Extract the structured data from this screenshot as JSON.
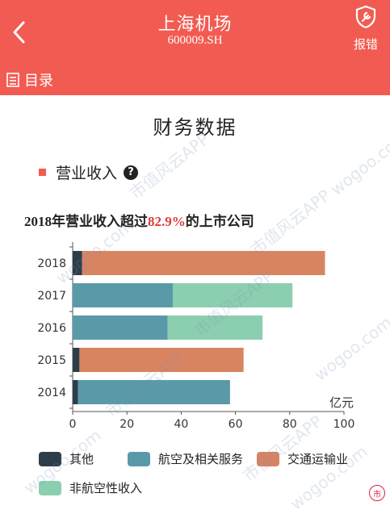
{
  "header": {
    "title": "上海机场",
    "code": "600009.SH",
    "report_label": "报错",
    "bg_color": "#f25b52"
  },
  "toc": {
    "label": "目录"
  },
  "card": {
    "title": "财务数据",
    "section_label": "营业收入",
    "help_symbol": "?",
    "headline_prefix": "2018年营业收入超过",
    "headline_pct": "82.9%",
    "headline_suffix": "的上市公司"
  },
  "chart_data": {
    "type": "bar",
    "orientation": "horizontal",
    "stacked": true,
    "categories": [
      "2018",
      "2017",
      "2016",
      "2015",
      "2014"
    ],
    "series": [
      {
        "name": "其他",
        "color": "#2d3e4a",
        "values": [
          3.5,
          0,
          0,
          2.5,
          2.0
        ]
      },
      {
        "name": "航空及相关服务",
        "color": "#5a9aa8",
        "values": [
          0,
          37,
          35,
          0,
          56
        ]
      },
      {
        "name": "交通运输业",
        "color": "#d98461",
        "values": [
          89.5,
          0,
          0,
          60.5,
          0
        ]
      },
      {
        "name": "非航空性收入",
        "color": "#8ccfb0",
        "values": [
          0,
          44,
          35,
          0,
          0
        ]
      }
    ],
    "xlabel": "亿元",
    "xlim": [
      0,
      100
    ],
    "xticks": [
      "0",
      "20",
      "40",
      "60",
      "80",
      "100"
    ],
    "grid": false,
    "legend_position": "bottom"
  },
  "watermark": {
    "text": "市值风云APP",
    "site": "wogoo.com"
  }
}
